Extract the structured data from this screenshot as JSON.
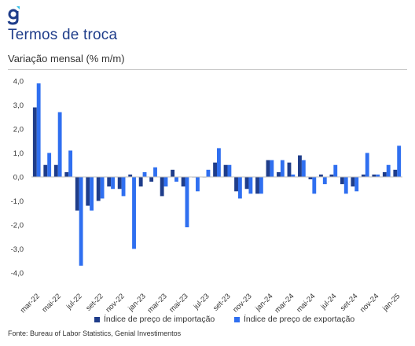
{
  "header": {
    "title": "Termos de troca",
    "subtitle": "Variação mensal (% m/m)"
  },
  "source": "Fonte: Bureau of Labor Statistics, Genial Investimentos",
  "colors": {
    "import": "#1f3d8a",
    "export": "#2f6ff0",
    "title": "#1f3d8a",
    "logo_accent": "#35c0e8"
  },
  "logo": {
    "icon": "genial-g-logo-icon"
  },
  "chart_data": {
    "type": "bar",
    "title": "Termos de troca",
    "ylabel": "Variação mensal (% m/m)",
    "ylim": [
      -4.0,
      4.0
    ],
    "yticks": [
      "4,0",
      "3,0",
      "2,0",
      "1,0",
      "0,0",
      "-1,0",
      "-2,0",
      "-3,0",
      "-4,0"
    ],
    "ytick_values": [
      4,
      3,
      2,
      1,
      0,
      -1,
      -2,
      -3,
      -4
    ],
    "categories": [
      "mar-22",
      "abr-22",
      "mai-22",
      "jun-22",
      "jul-22",
      "ago-22",
      "set-22",
      "out-22",
      "nov-22",
      "dez-22",
      "jan-23",
      "fev-23",
      "mar-23",
      "abr-23",
      "mai-23",
      "jun-23",
      "jul-23",
      "ago-23",
      "set-23",
      "out-23",
      "nov-23",
      "dez-23",
      "jan-24",
      "fev-24",
      "mar-24",
      "abr-24",
      "mai-24",
      "jun-24",
      "jul-24",
      "ago-24",
      "set-24",
      "out-24",
      "nov-24",
      "dez-24",
      "jan-25"
    ],
    "xtick_labels": [
      "mar-22",
      "mai-22",
      "jul-22",
      "set-22",
      "nov-22",
      "jan-23",
      "mar-23",
      "mai-23",
      "jul-23",
      "set-23",
      "nov-23",
      "jan-24",
      "mar-24",
      "mai-24",
      "jul-24",
      "set-24",
      "nov-24",
      "jan-25"
    ],
    "series": [
      {
        "name": "Índice de preço de importação",
        "values": [
          2.9,
          0.5,
          0.5,
          0.2,
          -1.4,
          -1.2,
          -1.0,
          -0.4,
          -0.5,
          0.1,
          -0.4,
          -0.2,
          -0.8,
          0.3,
          -0.4,
          0.0,
          0.0,
          0.6,
          0.5,
          -0.6,
          -0.5,
          -0.7,
          0.7,
          0.2,
          0.6,
          0.9,
          -0.1,
          0.1,
          0.1,
          -0.3,
          -0.4,
          0.1,
          0.1,
          0.2,
          0.3
        ]
      },
      {
        "name": "Índice de preço de exportação",
        "values": [
          3.9,
          1.0,
          2.7,
          1.1,
          -3.7,
          -1.4,
          -0.9,
          -0.5,
          -0.8,
          -3.0,
          0.2,
          0.4,
          -0.4,
          -0.2,
          -2.1,
          -0.6,
          0.3,
          1.2,
          0.5,
          -0.9,
          -0.7,
          -0.7,
          0.7,
          0.7,
          0.1,
          0.7,
          -0.7,
          -0.3,
          0.5,
          -0.7,
          -0.6,
          1.0,
          0.1,
          0.5,
          1.3
        ]
      }
    ],
    "grid": false,
    "legend_position": "bottom"
  }
}
